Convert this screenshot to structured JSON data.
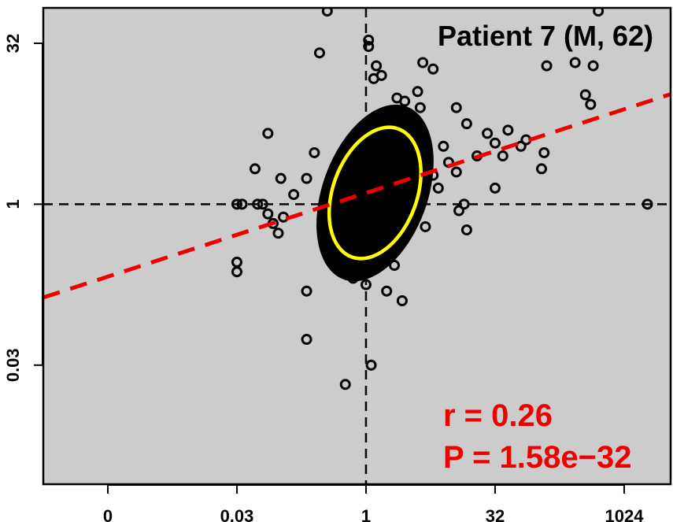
{
  "chart_data": {
    "type": "scatter",
    "title": "Patient 7 (M, 62)",
    "xlabel": "",
    "ylabel": "",
    "x_scale": "log2",
    "y_scale": "log2",
    "xlim_log2": [
      -12.5,
      11.8
    ],
    "ylim_log2": [
      -8.7,
      6.1
    ],
    "x_ticks": [
      {
        "label": "0",
        "log2": -10
      },
      {
        "label": "0.03",
        "log2": -5
      },
      {
        "label": "1",
        "log2": 0
      },
      {
        "label": "32",
        "log2": 5
      },
      {
        "label": "1024",
        "log2": 10
      }
    ],
    "y_ticks": [
      {
        "label": "0.03",
        "log2": -5
      },
      {
        "label": "1",
        "log2": 0
      },
      {
        "label": "32",
        "log2": 5
      }
    ],
    "reference_lines": {
      "x": 1,
      "y": 1
    },
    "regression_line": {
      "slope": 0.26,
      "intercept_log2": 0.35
    },
    "ellipse": {
      "center_log2": [
        0.35,
        0.35
      ],
      "semi_axes_log2": [
        1.45,
        2.35
      ],
      "angle_deg": 70
    },
    "annotations": {
      "r_text": "r = 0.26",
      "p_text": "P = 1.58e−32"
    },
    "points_log2": [
      [
        -1.5,
        6.0
      ],
      [
        -1.8,
        4.7
      ],
      [
        0.1,
        4.9
      ],
      [
        0.4,
        4.3
      ],
      [
        0.1,
        5.1
      ],
      [
        0.6,
        4.0
      ],
      [
        0.3,
        3.9
      ],
      [
        2.2,
        4.4
      ],
      [
        2.6,
        4.2
      ],
      [
        2.0,
        3.5
      ],
      [
        1.2,
        3.3
      ],
      [
        1.5,
        3.2
      ],
      [
        2.1,
        3.0
      ],
      [
        -3.8,
        2.2
      ],
      [
        -4.3,
        1.1
      ],
      [
        -3.3,
        0.8
      ],
      [
        -5.0,
        0.0
      ],
      [
        -4.8,
        0.0
      ],
      [
        -4.2,
        0.0
      ],
      [
        -4.0,
        0.0
      ],
      [
        -3.8,
        -0.3
      ],
      [
        -3.6,
        -0.6
      ],
      [
        -3.4,
        -0.9
      ],
      [
        -3.2,
        -0.4
      ],
      [
        -2.8,
        0.3
      ],
      [
        -2.3,
        0.8
      ],
      [
        -2.0,
        1.6
      ],
      [
        -5.0,
        -1.8
      ],
      [
        -5.0,
        -2.1
      ],
      [
        -2.3,
        -2.7
      ],
      [
        -2.3,
        -4.2
      ],
      [
        -0.8,
        -5.6
      ],
      [
        0.2,
        -5.0
      ],
      [
        -0.5,
        -2.3
      ],
      [
        0.0,
        -2.5
      ],
      [
        0.8,
        -2.7
      ],
      [
        1.4,
        -3.0
      ],
      [
        0.5,
        -1.6
      ],
      [
        1.1,
        -1.9
      ],
      [
        3.5,
        3.0
      ],
      [
        3.9,
        2.5
      ],
      [
        4.3,
        1.5
      ],
      [
        3.2,
        1.3
      ],
      [
        3.0,
        1.8
      ],
      [
        3.5,
        1.0
      ],
      [
        3.8,
        0.0
      ],
      [
        4.7,
        2.2
      ],
      [
        5.5,
        2.3
      ],
      [
        6.2,
        2.0
      ],
      [
        5.3,
        1.5
      ],
      [
        5.0,
        1.9
      ],
      [
        6.0,
        1.8
      ],
      [
        3.9,
        -0.8
      ],
      [
        3.6,
        -0.2
      ],
      [
        2.6,
        0.9
      ],
      [
        2.8,
        0.5
      ],
      [
        2.3,
        -0.7
      ],
      [
        7.0,
        4.3
      ],
      [
        8.1,
        4.4
      ],
      [
        9.0,
        6.0
      ],
      [
        8.8,
        4.3
      ],
      [
        8.7,
        3.1
      ],
      [
        8.5,
        3.4
      ],
      [
        6.8,
        1.1
      ],
      [
        6.9,
        1.6
      ],
      [
        5.0,
        0.5
      ],
      [
        10.9,
        0.0
      ]
    ]
  }
}
